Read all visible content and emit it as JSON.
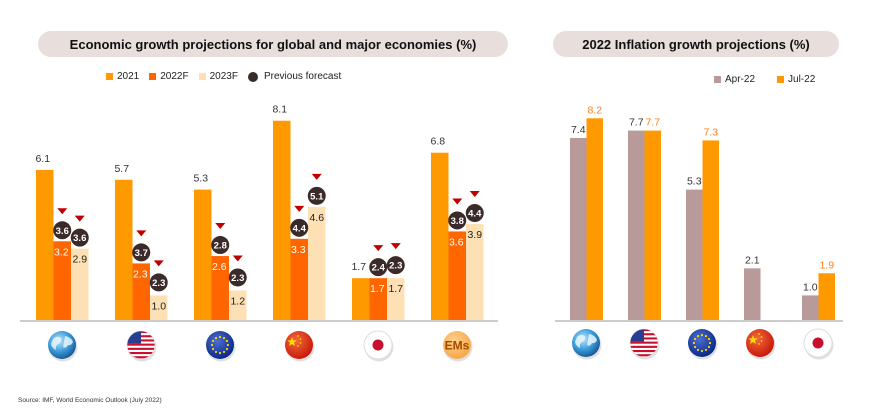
{
  "chart_data": [
    {
      "type": "bar",
      "title": "Economic growth projections for global and major economies (%)",
      "categories": [
        "Global",
        "US",
        "EU",
        "China",
        "Japan",
        "EMs"
      ],
      "category_icons": [
        "globe-icon",
        "us-flag-icon",
        "eu-flag-icon",
        "china-flag-icon",
        "japan-flag-icon",
        "ems-badge-icon"
      ],
      "category_badge_text": {
        "EMs": "EMs"
      },
      "series": [
        {
          "name": "2021",
          "color": "#ff9900",
          "label_color": "#333333",
          "values": [
            6.1,
            5.7,
            5.3,
            8.1,
            1.7,
            6.8
          ]
        },
        {
          "name": "2022F",
          "color": "#ff6600",
          "label_color": "#ffffff",
          "values": [
            3.2,
            2.3,
            2.6,
            3.3,
            1.7,
            3.6
          ]
        },
        {
          "name": "2023F",
          "color": "#fde0b3",
          "label_color": "#222222",
          "values": [
            2.9,
            1.0,
            1.2,
            4.6,
            1.7,
            3.9
          ]
        }
      ],
      "previous_forecast": {
        "name": "Previous forecast",
        "color": "#3b2a2a",
        "arrow_color": "#c00000",
        "2022F": [
          3.6,
          3.7,
          2.8,
          4.4,
          2.4,
          3.8
        ],
        "2023F": [
          3.6,
          2.3,
          2.3,
          5.1,
          2.3,
          4.4
        ]
      },
      "ylim": [
        0,
        9
      ],
      "grid": false,
      "legend": "top-center",
      "xlabel": "",
      "ylabel": ""
    },
    {
      "type": "bar",
      "title": "2022 Inflation growth projections (%)",
      "categories": [
        "Global",
        "US",
        "EU",
        "China",
        "Japan"
      ],
      "category_icons": [
        "globe-icon",
        "us-flag-icon",
        "eu-flag-icon",
        "china-flag-icon",
        "japan-flag-icon"
      ],
      "series": [
        {
          "name": "Apr-22",
          "color": "#b89a9a",
          "label_color": "#333333",
          "values": [
            7.4,
            7.7,
            5.3,
            2.1,
            1.0
          ]
        },
        {
          "name": "Jul-22",
          "color": "#ff9900",
          "label_color": "#ff7f1a",
          "values": [
            8.2,
            7.7,
            7.3,
            null,
            1.9
          ]
        }
      ],
      "ylim": [
        0,
        9
      ],
      "grid": false,
      "legend": "top-right",
      "xlabel": "",
      "ylabel": ""
    }
  ],
  "legend_left": [
    "2021",
    "2022F",
    "2023F",
    "Previous forecast"
  ],
  "legend_right": [
    "Apr-22",
    "Jul-22"
  ],
  "source": "Source: IMF, World Economic Outlook (July 2022)"
}
